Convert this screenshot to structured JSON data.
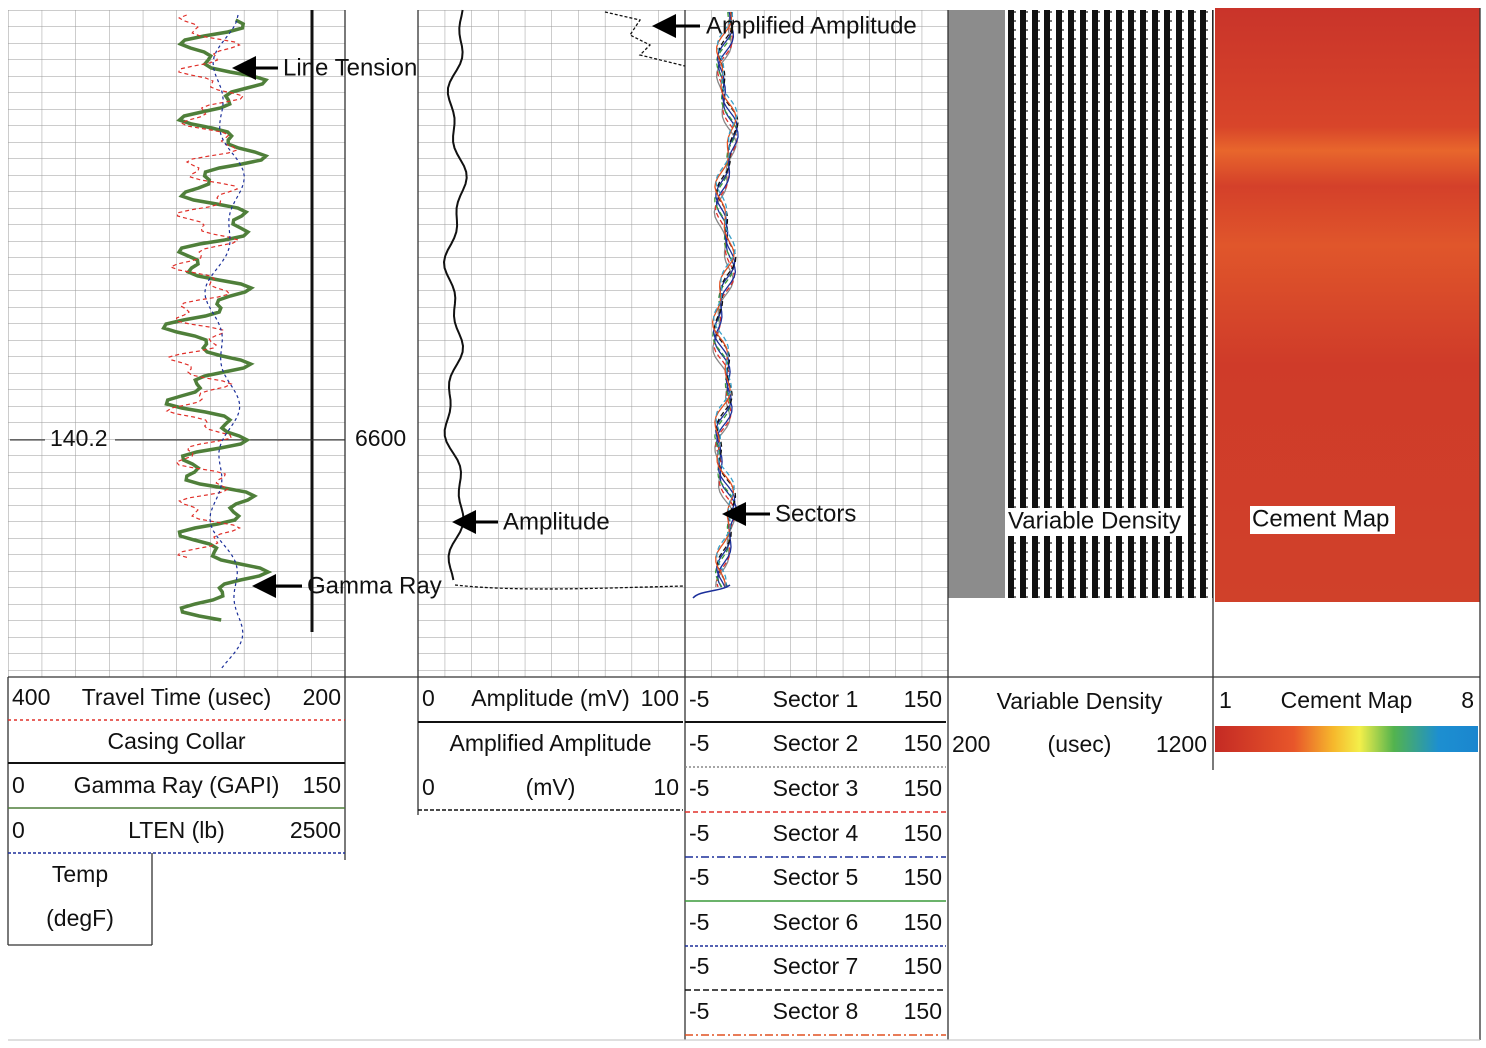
{
  "depth_label": "6600",
  "depth_marker": "140.2",
  "annotations": {
    "line_tension": "Line Tension",
    "gamma_ray": "Gamma Ray",
    "amplitude": "Amplitude",
    "amplified_amplitude": "Amplified Amplitude",
    "sectors": "Sectors",
    "variable_density": "Variable Density",
    "cement_map": "Cement Map"
  },
  "headers": {
    "track1": [
      {
        "left": "400",
        "label": "Travel Time (usec)",
        "right": "200"
      },
      {
        "label": "Casing Collar"
      },
      {
        "left": "0",
        "label": "Gamma Ray (GAPI)",
        "right": "150"
      },
      {
        "left": "0",
        "label": "LTEN (lb)",
        "right": "2500"
      },
      {
        "label": "Temp"
      },
      {
        "label": "(degF)"
      }
    ],
    "track2": [
      {
        "left": "0",
        "label": "Amplitude (mV)",
        "right": "100"
      },
      {
        "label": "Amplified Amplitude"
      },
      {
        "left": "0",
        "label": "(mV)",
        "right": "10"
      }
    ],
    "track3": [
      {
        "left": "-5",
        "label": "Sector 1",
        "right": "150"
      },
      {
        "left": "-5",
        "label": "Sector 2",
        "right": "150"
      },
      {
        "left": "-5",
        "label": "Sector 3",
        "right": "150"
      },
      {
        "left": "-5",
        "label": "Sector 4",
        "right": "150"
      },
      {
        "left": "-5",
        "label": "Sector 5",
        "right": "150"
      },
      {
        "left": "-5",
        "label": "Sector 6",
        "right": "150"
      },
      {
        "left": "-5",
        "label": "Sector 7",
        "right": "150"
      },
      {
        "left": "-5",
        "label": "Sector 8",
        "right": "150"
      }
    ],
    "track4": [
      {
        "label": "Variable Density"
      },
      {
        "left": "200",
        "label": "(usec)",
        "right": "1200"
      }
    ],
    "track5": [
      {
        "left": "1",
        "label": "Cement Map",
        "right": "8"
      }
    ]
  }
}
